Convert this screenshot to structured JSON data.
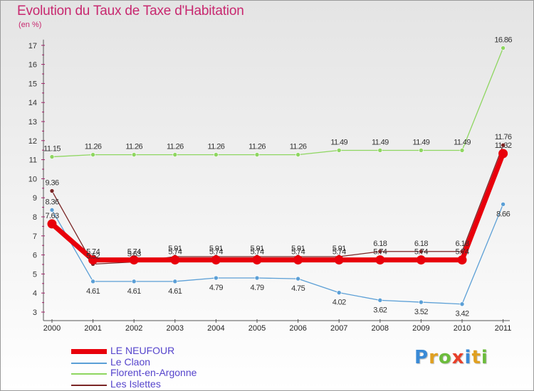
{
  "title": "Evolution du Taux de Taxe d'Habitation",
  "subtitle": "(en %)",
  "logo": "Proxiti",
  "chart_data": {
    "type": "line",
    "x": [
      "2000",
      "2001",
      "2002",
      "2003",
      "2004",
      "2005",
      "2006",
      "2007",
      "2008",
      "2009",
      "2010",
      "2011"
    ],
    "ylim": [
      3,
      17
    ],
    "yticks": [
      3,
      4,
      5,
      6,
      7,
      8,
      9,
      10,
      11,
      12,
      13,
      14,
      15,
      16,
      17
    ],
    "grid": false,
    "legend_position": "bottom-left",
    "series": [
      {
        "name": "LE NEUFOUR",
        "color": "#e8000b",
        "values": [
          7.63,
          5.74,
          5.74,
          5.74,
          5.74,
          5.74,
          5.74,
          5.74,
          5.74,
          5.74,
          5.74,
          11.32
        ],
        "labels": [
          "7.63",
          "5.74",
          "5.74",
          "5.74",
          "5.74",
          "5.74",
          "5.74",
          "5.74",
          "5.74",
          "5.74",
          "5.74",
          "11.32"
        ]
      },
      {
        "name": "Le Claon",
        "color": "#5b9fd6",
        "values": [
          8.36,
          4.61,
          4.61,
          4.61,
          4.79,
          4.79,
          4.75,
          4.02,
          3.62,
          3.52,
          3.42,
          8.66
        ],
        "labels": [
          "8.36",
          "4.61",
          "4.61",
          "4.61",
          "4.79",
          "4.79",
          "4.75",
          "4.02",
          "3.62",
          "3.52",
          "3.42",
          "8.66"
        ]
      },
      {
        "name": "Florent-en-Argonne",
        "color": "#8ed660",
        "values": [
          11.15,
          11.26,
          11.26,
          11.26,
          11.26,
          11.26,
          11.26,
          11.49,
          11.49,
          11.49,
          11.49,
          16.86
        ],
        "labels": [
          "11.15",
          "11.26",
          "11.26",
          "11.26",
          "11.26",
          "11.26",
          "11.26",
          "11.49",
          "11.49",
          "11.49",
          "11.49",
          "16.86"
        ]
      },
      {
        "name": "Les Islettes",
        "color": "#7a2525",
        "values": [
          9.36,
          5.52,
          5.63,
          5.91,
          5.91,
          5.91,
          5.91,
          5.91,
          6.18,
          6.18,
          6.18,
          11.76
        ],
        "labels": [
          "9.36",
          "5.52",
          "5.63",
          "5.91",
          "5.91",
          "5.91",
          "5.91",
          "5.91",
          "6.18",
          "6.18",
          "6.18",
          "11.76"
        ]
      }
    ]
  }
}
